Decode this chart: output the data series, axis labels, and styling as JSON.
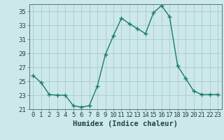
{
  "x": [
    0,
    1,
    2,
    3,
    4,
    5,
    6,
    7,
    8,
    9,
    10,
    11,
    12,
    13,
    14,
    15,
    16,
    17,
    18,
    19,
    20,
    21,
    22,
    23
  ],
  "y": [
    25.8,
    24.8,
    23.1,
    23.0,
    23.0,
    21.5,
    21.3,
    21.5,
    24.3,
    28.8,
    31.5,
    34.0,
    33.2,
    32.5,
    31.8,
    34.8,
    35.8,
    34.2,
    27.2,
    25.4,
    23.6,
    23.1,
    23.1,
    23.1
  ],
  "line_color": "#1a7a6e",
  "marker": "+",
  "marker_size": 4,
  "bg_color": "#cce8e8",
  "grid_color": "#aacccc",
  "xlabel": "Humidex (Indice chaleur)",
  "ylim": [
    21,
    36
  ],
  "yticks": [
    21,
    23,
    25,
    27,
    29,
    31,
    33,
    35
  ],
  "xlim": [
    -0.5,
    23.5
  ],
  "xticks": [
    0,
    1,
    2,
    3,
    4,
    5,
    6,
    7,
    8,
    9,
    10,
    11,
    12,
    13,
    14,
    15,
    16,
    17,
    18,
    19,
    20,
    21,
    22,
    23
  ],
  "xlabel_fontsize": 7.5,
  "tick_fontsize": 6.5
}
